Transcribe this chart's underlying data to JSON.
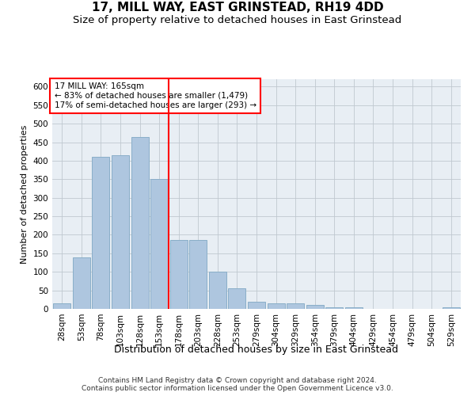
{
  "title": "17, MILL WAY, EAST GRINSTEAD, RH19 4DD",
  "subtitle": "Size of property relative to detached houses in East Grinstead",
  "xlabel": "Distribution of detached houses by size in East Grinstead",
  "ylabel": "Number of detached properties",
  "footer_line1": "Contains HM Land Registry data © Crown copyright and database right 2024.",
  "footer_line2": "Contains public sector information licensed under the Open Government Licence v3.0.",
  "bar_labels": [
    "28sqm",
    "53sqm",
    "78sqm",
    "103sqm",
    "128sqm",
    "153sqm",
    "178sqm",
    "203sqm",
    "228sqm",
    "253sqm",
    "279sqm",
    "304sqm",
    "329sqm",
    "354sqm",
    "379sqm",
    "404sqm",
    "429sqm",
    "454sqm",
    "479sqm",
    "504sqm",
    "529sqm"
  ],
  "bar_values": [
    14,
    140,
    410,
    415,
    465,
    350,
    185,
    185,
    100,
    55,
    20,
    15,
    15,
    10,
    5,
    5,
    0,
    0,
    0,
    0,
    5
  ],
  "bar_color": "#aec6df",
  "bar_edge_color": "#8aaec8",
  "property_line_x": 5.5,
  "property_label": "17 MILL WAY: 165sqm",
  "annotation_line1": "← 83% of detached houses are smaller (1,479)",
  "annotation_line2": "17% of semi-detached houses are larger (293) →",
  "annotation_box_color": "white",
  "annotation_box_edge_color": "red",
  "vline_color": "red",
  "ylim": [
    0,
    620
  ],
  "yticks": [
    0,
    50,
    100,
    150,
    200,
    250,
    300,
    350,
    400,
    450,
    500,
    550,
    600
  ],
  "title_fontsize": 11,
  "subtitle_fontsize": 9.5,
  "xlabel_fontsize": 9,
  "ylabel_fontsize": 8,
  "tick_fontsize": 7.5,
  "footer_fontsize": 6.5,
  "bg_color": "#e8eef4"
}
